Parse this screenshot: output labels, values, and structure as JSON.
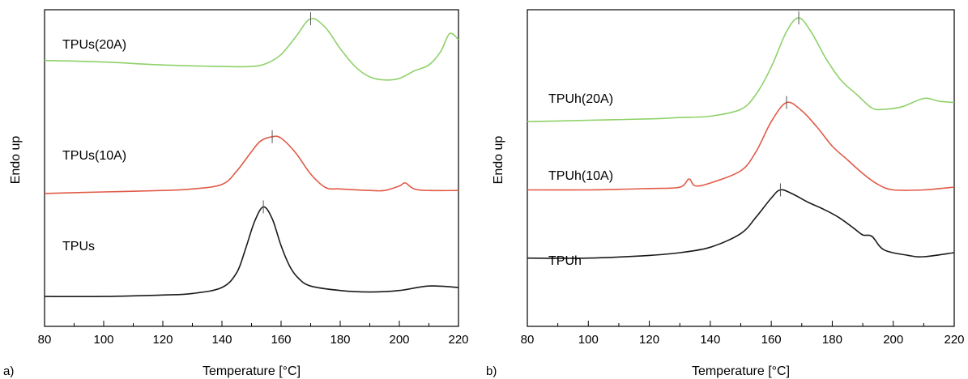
{
  "chart_data": [
    {
      "type": "line",
      "panel_label": "a)",
      "xlabel": "Temperature [°C]",
      "ylabel": "Endo up",
      "xlim": [
        80,
        220
      ],
      "xticks": [
        80,
        100,
        120,
        140,
        160,
        180,
        200,
        220
      ],
      "y_tick_labels": false,
      "grid": false,
      "legend": "none (series labelled inline)",
      "series": [
        {
          "name": "TPUs(20A)",
          "color": "#8fd16a",
          "peak_marker_x": 170,
          "x": [
            80,
            100,
            120,
            140,
            150,
            155,
            160,
            165,
            170,
            175,
            180,
            185,
            190,
            195,
            200,
            205,
            210,
            214,
            217,
            220
          ],
          "y": [
            8.9,
            8.85,
            8.75,
            8.7,
            8.7,
            8.8,
            9.1,
            9.7,
            10.3,
            10.0,
            9.3,
            8.7,
            8.35,
            8.25,
            8.3,
            8.55,
            8.75,
            9.2,
            9.8,
            9.6
          ]
        },
        {
          "name": "TPUs(10A)",
          "color": "#e05a47",
          "peak_marker_x": 157,
          "x": [
            80,
            100,
            120,
            130,
            140,
            145,
            150,
            153,
            157,
            160,
            165,
            170,
            175,
            180,
            190,
            195,
            200,
            202,
            205,
            210,
            220
          ],
          "y": [
            4.45,
            4.5,
            4.55,
            4.6,
            4.75,
            5.2,
            5.85,
            6.2,
            6.35,
            6.3,
            5.8,
            5.1,
            4.65,
            4.6,
            4.55,
            4.55,
            4.7,
            4.8,
            4.6,
            4.55,
            4.55
          ]
        },
        {
          "name": "TPUs",
          "color": "#1a1a1a",
          "peak_marker_x": 154,
          "x": [
            80,
            100,
            120,
            130,
            140,
            145,
            148,
            151,
            154,
            157,
            160,
            163,
            166,
            170,
            180,
            190,
            200,
            210,
            220
          ],
          "y": [
            1.0,
            1.0,
            1.05,
            1.1,
            1.3,
            1.8,
            2.6,
            3.5,
            4.0,
            3.6,
            2.7,
            2.0,
            1.6,
            1.35,
            1.2,
            1.15,
            1.2,
            1.35,
            1.3
          ]
        }
      ]
    },
    {
      "type": "line",
      "panel_label": "b)",
      "xlabel": "Temperature [°C]",
      "ylabel": "Endo up",
      "xlim": [
        80,
        220
      ],
      "xticks": [
        80,
        100,
        120,
        140,
        160,
        180,
        200,
        220
      ],
      "y_tick_labels": false,
      "grid": false,
      "legend": "none (series labelled inline)",
      "series": [
        {
          "name": "TPUh(20A)",
          "color": "#8fd16a",
          "peak_marker_x": 169,
          "x": [
            80,
            100,
            120,
            130,
            140,
            150,
            155,
            160,
            165,
            169,
            173,
            178,
            183,
            188,
            193,
            197,
            203,
            210,
            215,
            220
          ],
          "y": [
            7.5,
            7.55,
            7.6,
            7.65,
            7.7,
            7.95,
            8.5,
            9.5,
            10.8,
            11.3,
            10.8,
            9.8,
            9.0,
            8.5,
            8.0,
            7.95,
            8.05,
            8.35,
            8.25,
            8.2
          ]
        },
        {
          "name": "TPUh(10A)",
          "color": "#e05a47",
          "peak_marker_x": 165,
          "x": [
            80,
            100,
            120,
            130,
            133,
            135,
            140,
            150,
            155,
            160,
            165,
            170,
            175,
            180,
            185,
            190,
            195,
            200,
            210,
            220
          ],
          "y": [
            5.0,
            5.0,
            5.05,
            5.1,
            5.4,
            5.15,
            5.25,
            5.7,
            6.4,
            7.5,
            8.2,
            7.9,
            7.3,
            6.6,
            6.1,
            5.6,
            5.2,
            5.0,
            5.0,
            5.1
          ]
        },
        {
          "name": "TPUh",
          "color": "#1a1a1a",
          "peak_marker_x": 163,
          "x": [
            80,
            100,
            120,
            130,
            140,
            150,
            155,
            160,
            163,
            167,
            172,
            177,
            182,
            187,
            190,
            193,
            197,
            205,
            210,
            220
          ],
          "y": [
            2.5,
            2.5,
            2.6,
            2.7,
            2.9,
            3.4,
            4.0,
            4.7,
            5.0,
            4.85,
            4.55,
            4.3,
            4.0,
            3.6,
            3.35,
            3.3,
            2.8,
            2.6,
            2.55,
            2.7
          ]
        }
      ]
    }
  ]
}
